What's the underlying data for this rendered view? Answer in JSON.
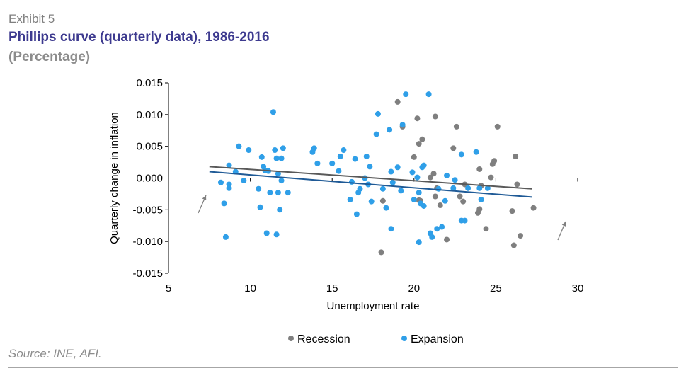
{
  "header": {
    "exhibit": "Exhibit 5",
    "title": "Phillips curve (quarterly data), 1986-2016",
    "subtitle": "(Percentage)"
  },
  "footer": {
    "source": "Source: INE, AFI."
  },
  "colors": {
    "recession": "#7f7f7f",
    "expansion": "#2f9fe8",
    "recession_trend": "#595959",
    "expansion_trend": "#1f5a96",
    "title": "#3d3a8f"
  },
  "chart_data": {
    "type": "scatter",
    "title": "",
    "xlabel": "Unemployment rate",
    "ylabel": "Quarterly change in inflation",
    "xlim": [
      5,
      30
    ],
    "ylim": [
      -0.015,
      0.015
    ],
    "x_ticks": [
      5,
      10,
      15,
      20,
      25,
      30
    ],
    "y_ticks": [
      0.015,
      0.01,
      0.005,
      0.0,
      -0.005,
      -0.01,
      -0.015
    ],
    "x_tick_labels": [
      "5",
      "10",
      "15",
      "20",
      "25",
      "30"
    ],
    "y_tick_labels": [
      "0.015",
      "0.010",
      "0.005",
      "0.000",
      "-0.005",
      "-0.010",
      "-0.015"
    ],
    "grid": false,
    "legend_position": "bottom",
    "series": [
      {
        "name": "Recession",
        "points": [
          [
            19.0,
            0.012
          ],
          [
            19.3,
            0.0081
          ],
          [
            20.2,
            0.0094
          ],
          [
            20.5,
            0.0061
          ],
          [
            20.3,
            0.0054
          ],
          [
            20.0,
            0.0033
          ],
          [
            21.3,
            0.0097
          ],
          [
            22.6,
            0.0081
          ],
          [
            22.4,
            0.0047
          ],
          [
            21.2,
            0.0007
          ],
          [
            21.0,
            0.0001
          ],
          [
            21.4,
            -0.0016
          ],
          [
            21.3,
            -0.0029
          ],
          [
            21.6,
            -0.0043
          ],
          [
            20.3,
            -0.0035
          ],
          [
            20.4,
            -0.0036
          ],
          [
            22.0,
            -0.0097
          ],
          [
            18.0,
            -0.0117
          ],
          [
            18.1,
            -0.0036
          ],
          [
            23.1,
            -0.001
          ],
          [
            22.8,
            -0.0029
          ],
          [
            23.0,
            -0.0037
          ],
          [
            24.0,
            0.0014
          ],
          [
            24.1,
            -0.0012
          ],
          [
            24.0,
            -0.0049
          ],
          [
            23.9,
            -0.0055
          ],
          [
            24.4,
            -0.008
          ],
          [
            24.8,
            0.0022
          ],
          [
            24.9,
            0.0027
          ],
          [
            25.1,
            0.0081
          ],
          [
            26.2,
            0.0034
          ],
          [
            26.3,
            -0.001
          ],
          [
            26.0,
            -0.0052
          ],
          [
            26.5,
            -0.0091
          ],
          [
            26.1,
            -0.0106
          ],
          [
            27.3,
            -0.0047
          ],
          [
            24.7,
            0.0001
          ]
        ]
      },
      {
        "name": "Expansion",
        "points": [
          [
            8.2,
            -0.0007
          ],
          [
            8.4,
            -0.004
          ],
          [
            8.5,
            -0.0093
          ],
          [
            8.7,
            -0.0016
          ],
          [
            8.7,
            0.002
          ],
          [
            8.7,
            -0.001
          ],
          [
            9.1,
            0.001
          ],
          [
            9.3,
            0.005
          ],
          [
            9.6,
            -0.0004
          ],
          [
            9.9,
            0.0044
          ],
          [
            10.5,
            -0.0017
          ],
          [
            10.6,
            -0.0046
          ],
          [
            10.7,
            0.0033
          ],
          [
            10.8,
            0.0018
          ],
          [
            10.9,
            0.0012
          ],
          [
            11.0,
            -0.0087
          ],
          [
            11.1,
            0.0011
          ],
          [
            11.2,
            -0.0023
          ],
          [
            11.4,
            0.0104
          ],
          [
            11.5,
            0.0044
          ],
          [
            11.6,
            0.0031
          ],
          [
            11.6,
            -0.0089
          ],
          [
            11.7,
            0.0007
          ],
          [
            11.7,
            -0.0023
          ],
          [
            11.8,
            -0.005
          ],
          [
            11.9,
            0.0031
          ],
          [
            12.0,
            0.0047
          ],
          [
            11.9,
            -0.0004
          ],
          [
            12.3,
            -0.0023
          ],
          [
            13.8,
            0.0041
          ],
          [
            13.9,
            0.0047
          ],
          [
            14.1,
            0.0023
          ],
          [
            15.0,
            0.0023
          ],
          [
            15.4,
            0.0011
          ],
          [
            15.5,
            0.0034
          ],
          [
            15.7,
            0.0044
          ],
          [
            16.1,
            -0.0034
          ],
          [
            16.2,
            -0.0006
          ],
          [
            16.4,
            0.003
          ],
          [
            16.5,
            -0.0057
          ],
          [
            16.6,
            -0.0023
          ],
          [
            16.7,
            -0.0017
          ],
          [
            17.0,
            0.0
          ],
          [
            17.1,
            0.0034
          ],
          [
            17.2,
            -0.001
          ],
          [
            17.3,
            0.0018
          ],
          [
            17.4,
            -0.0037
          ],
          [
            17.7,
            0.0069
          ],
          [
            17.8,
            0.0101
          ],
          [
            18.1,
            -0.0017
          ],
          [
            18.3,
            -0.0047
          ],
          [
            18.5,
            0.0076
          ],
          [
            18.6,
            0.001
          ],
          [
            18.7,
            -0.0007
          ],
          [
            18.6,
            -0.008
          ],
          [
            19.0,
            0.0017
          ],
          [
            19.2,
            -0.002
          ],
          [
            19.3,
            0.0084
          ],
          [
            19.5,
            0.0132
          ],
          [
            19.9,
            0.0009
          ],
          [
            20.0,
            -0.0034
          ],
          [
            20.2,
            0.0001
          ],
          [
            20.3,
            -0.0023
          ],
          [
            20.3,
            -0.0101
          ],
          [
            20.4,
            -0.004
          ],
          [
            20.5,
            0.0017
          ],
          [
            20.6,
            0.002
          ],
          [
            20.6,
            -0.0044
          ],
          [
            20.9,
            0.0132
          ],
          [
            21.0,
            -0.0087
          ],
          [
            21.1,
            -0.0093
          ],
          [
            21.4,
            -0.008
          ],
          [
            21.5,
            -0.0017
          ],
          [
            21.7,
            -0.0077
          ],
          [
            21.9,
            -0.0036
          ],
          [
            22.0,
            0.0004
          ],
          [
            22.4,
            -0.0016
          ],
          [
            22.5,
            -0.0003
          ],
          [
            22.9,
            0.0037
          ],
          [
            22.9,
            -0.0067
          ],
          [
            23.1,
            -0.0067
          ],
          [
            23.3,
            -0.0016
          ],
          [
            23.8,
            0.0041
          ],
          [
            24.0,
            -0.0016
          ],
          [
            24.1,
            -0.0034
          ],
          [
            24.5,
            -0.0016
          ]
        ]
      }
    ],
    "trendlines": [
      {
        "series": "Recession",
        "from": [
          7.5,
          0.0018
        ],
        "to": [
          27.2,
          -0.0017
        ]
      },
      {
        "series": "Expansion",
        "from": [
          7.5,
          0.001
        ],
        "to": [
          27.2,
          -0.003
        ]
      }
    ]
  }
}
